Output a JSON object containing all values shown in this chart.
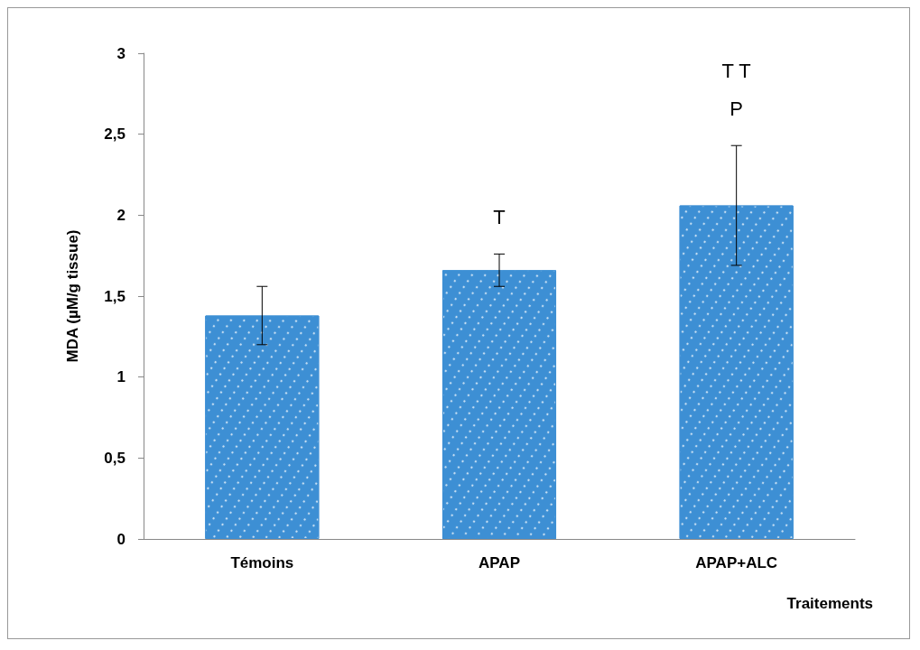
{
  "chart_data": {
    "type": "bar",
    "xlabel": "Traitements",
    "ylabel": "MDA (µM/g tissue)",
    "categories": [
      "Témoins",
      "APAP",
      "APAP+ALC"
    ],
    "values": [
      1.38,
      1.66,
      2.06
    ],
    "errors": [
      0.18,
      0.1,
      0.37
    ],
    "color": "#3d8fd4",
    "ylim": [
      0,
      3
    ],
    "yticks": [
      0,
      {
        "value": 0.5,
        "label": "0,5"
      },
      1,
      {
        "value": 1.5,
        "label": "1,5"
      },
      2,
      {
        "value": 2.5,
        "label": "2,5"
      },
      3
    ],
    "grid": false,
    "annotations": [
      {
        "text": "T",
        "x": "APAP",
        "y": 1.76
      },
      {
        "text": "T T\nP",
        "x": "APAP+ALC",
        "y": 2.43
      }
    ]
  }
}
